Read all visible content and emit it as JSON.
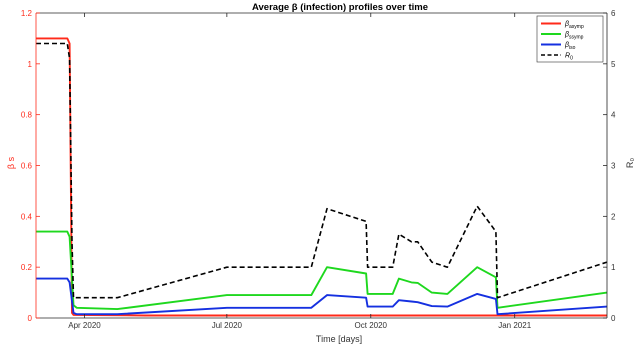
{
  "chart_data": {
    "type": "line",
    "title": "Average β (infection) profiles over time",
    "xlabel": "Time [days]",
    "ylabel_left": "β s",
    "ylabel_right": "R₀",
    "x_ticks": [
      "Apr 2020",
      "Jul 2020",
      "Oct 2020",
      "Jan 2021"
    ],
    "x_tick_days": [
      91,
      182,
      274,
      366
    ],
    "xlim_days": [
      60,
      425
    ],
    "xlim_dates": [
      "2020-03-01",
      "2021-02-28"
    ],
    "ylim_left": [
      0,
      1.2
    ],
    "yticks_left": [
      "0",
      "0.2",
      "0.4",
      "0.6",
      "0.8",
      "1",
      "1.2"
    ],
    "ylim_right": [
      0,
      6
    ],
    "yticks_right": [
      "0",
      "1",
      "2",
      "3",
      "4",
      "5",
      "6"
    ],
    "legend_position": "top-right",
    "series": [
      {
        "name": "β_asymp",
        "legend_main": "β",
        "legend_sub": "asymp",
        "axis": "left",
        "color": "#ff2a1a",
        "dash": "solid",
        "points": [
          [
            60,
            1.1
          ],
          [
            80,
            1.1
          ],
          [
            81.5,
            1.08
          ],
          [
            83,
            0.02
          ],
          [
            84,
            0.012
          ],
          [
            130,
            0.01
          ],
          [
            425,
            0.01
          ]
        ]
      },
      {
        "name": "β_ssymp",
        "legend_main": "β",
        "legend_sub": "ssymp",
        "axis": "left",
        "color": "#1ed81e",
        "dash": "solid",
        "points": [
          [
            60,
            0.34
          ],
          [
            80,
            0.34
          ],
          [
            81.5,
            0.32
          ],
          [
            84,
            0.05
          ],
          [
            86,
            0.04
          ],
          [
            112,
            0.035
          ],
          [
            182,
            0.09
          ],
          [
            236,
            0.09
          ],
          [
            246,
            0.2
          ],
          [
            271,
            0.175
          ],
          [
            272,
            0.095
          ],
          [
            288,
            0.095
          ],
          [
            292,
            0.155
          ],
          [
            300,
            0.14
          ],
          [
            304,
            0.138
          ],
          [
            313,
            0.1
          ],
          [
            323,
            0.095
          ],
          [
            342,
            0.2
          ],
          [
            354,
            0.16
          ],
          [
            355,
            0.04
          ],
          [
            425,
            0.1
          ]
        ]
      },
      {
        "name": "β_iso",
        "legend_main": "β",
        "legend_sub": "iso",
        "axis": "left",
        "color": "#1530e0",
        "dash": "solid",
        "points": [
          [
            60,
            0.155
          ],
          [
            80,
            0.155
          ],
          [
            81.5,
            0.14
          ],
          [
            84,
            0.02
          ],
          [
            86,
            0.015
          ],
          [
            112,
            0.015
          ],
          [
            182,
            0.04
          ],
          [
            236,
            0.04
          ],
          [
            246,
            0.09
          ],
          [
            271,
            0.08
          ],
          [
            272,
            0.045
          ],
          [
            288,
            0.045
          ],
          [
            292,
            0.07
          ],
          [
            300,
            0.065
          ],
          [
            304,
            0.062
          ],
          [
            313,
            0.047
          ],
          [
            323,
            0.045
          ],
          [
            342,
            0.095
          ],
          [
            354,
            0.075
          ],
          [
            355,
            0.015
          ],
          [
            425,
            0.045
          ]
        ]
      },
      {
        "name": "R₀",
        "legend_main": "R",
        "legend_sub": "0",
        "axis": "right",
        "color": "#000000",
        "dash": "dashed",
        "points": [
          [
            60,
            5.4
          ],
          [
            80,
            5.4
          ],
          [
            81.5,
            5.1
          ],
          [
            83,
            1.5
          ],
          [
            84,
            0.4
          ],
          [
            86,
            0.4
          ],
          [
            112,
            0.4
          ],
          [
            182,
            1.0
          ],
          [
            236,
            1.0
          ],
          [
            246,
            2.15
          ],
          [
            271,
            1.9
          ],
          [
            272,
            1.0
          ],
          [
            288,
            1.0
          ],
          [
            292,
            1.65
          ],
          [
            300,
            1.5
          ],
          [
            304,
            1.5
          ],
          [
            313,
            1.1
          ],
          [
            323,
            1.0
          ],
          [
            342,
            2.2
          ],
          [
            354,
            1.7
          ],
          [
            355,
            0.4
          ],
          [
            425,
            1.1
          ]
        ]
      }
    ]
  }
}
